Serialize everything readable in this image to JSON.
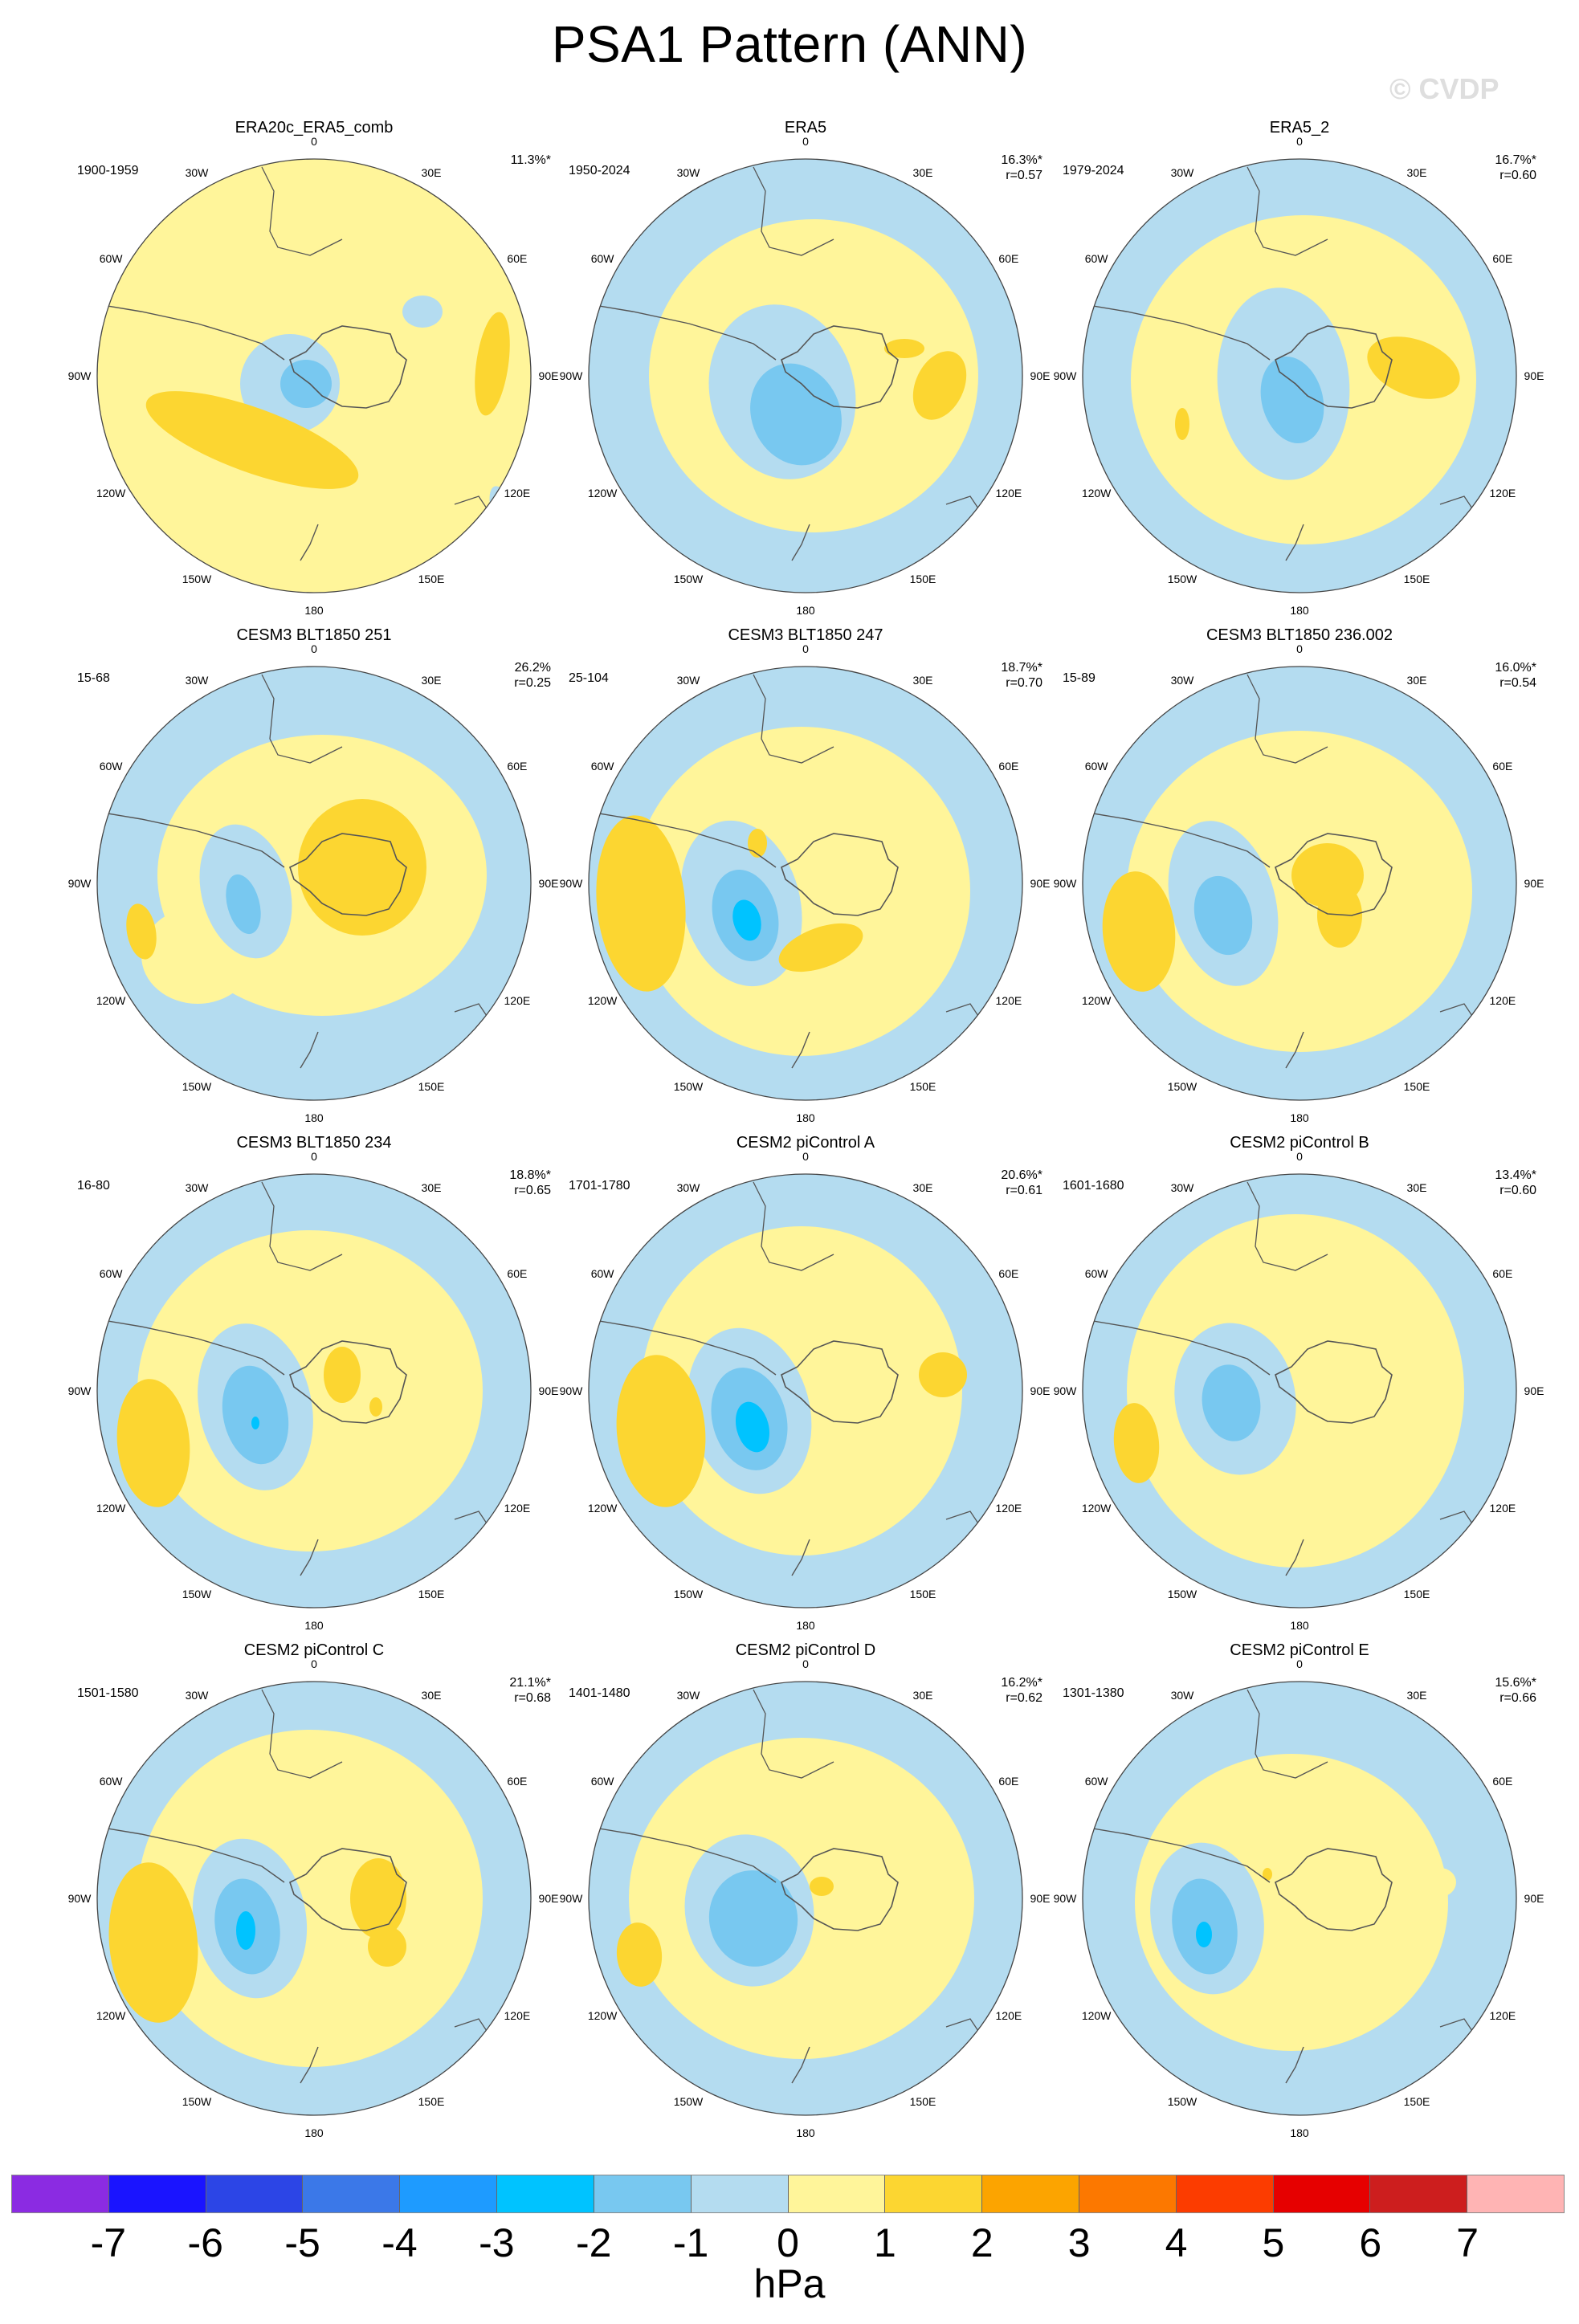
{
  "title": "PSA1 Pattern (ANN)",
  "copyright": "© CVDP",
  "lon_labels": [
    "0",
    "30E",
    "60E",
    "90E",
    "120E",
    "150E",
    "180",
    "150W",
    "120W",
    "90W",
    "60W",
    "30W"
  ],
  "units": "hPa",
  "colorbar": {
    "labels": [
      "-7",
      "-6",
      "-5",
      "-4",
      "-3",
      "-2",
      "-1",
      "0",
      "1",
      "2",
      "3",
      "4",
      "5",
      "6",
      "7"
    ],
    "colors": [
      "#8b2be2",
      "#1a14ff",
      "#2c45e6",
      "#3b78e8",
      "#1e9bff",
      "#00c3ff",
      "#78c8f0",
      "#b4dcf0",
      "#fff59a",
      "#fcd631",
      "#fca400",
      "#fc7800",
      "#fc3c00",
      "#e60000",
      "#cd1e1e",
      "#ffb4b4"
    ]
  },
  "colors": {
    "level_1": "#fcd631",
    "level_0": "#fff59a",
    "level_m1": "#b4dcf0",
    "level_m2": "#78c8f0",
    "level_m3": "#00c3ff",
    "level_m4": "#1e9bff",
    "coast": "#555555"
  },
  "panels": [
    {
      "title": "ERA20c_ERA5_comb",
      "years": "1900-1959",
      "pct": "11.3%*",
      "r": "",
      "base": "level_0"
    },
    {
      "title": "ERA5",
      "years": "1950-2024",
      "pct": "16.3%*",
      "r": "r=0.57",
      "base": "level_m1"
    },
    {
      "title": "ERA5_2",
      "years": "1979-2024",
      "pct": "16.7%*",
      "r": "r=0.60",
      "base": "level_m1"
    },
    {
      "title": "CESM3 BLT1850 251",
      "years": "15-68",
      "pct": "26.2%",
      "r": "r=0.25",
      "base": "level_m1"
    },
    {
      "title": "CESM3 BLT1850 247",
      "years": "25-104",
      "pct": "18.7%*",
      "r": "r=0.70",
      "base": "level_m1"
    },
    {
      "title": "CESM3 BLT1850 236.002",
      "years": "15-89",
      "pct": "16.0%*",
      "r": "r=0.54",
      "base": "level_m1"
    },
    {
      "title": "CESM3 BLT1850 234",
      "years": "16-80",
      "pct": "18.8%*",
      "r": "r=0.65",
      "base": "level_m1"
    },
    {
      "title": "CESM2 piControl A",
      "years": "1701-1780",
      "pct": "20.6%*",
      "r": "r=0.61",
      "base": "level_m1"
    },
    {
      "title": "CESM2 piControl B",
      "years": "1601-1680",
      "pct": "13.4%*",
      "r": "r=0.60",
      "base": "level_m1"
    },
    {
      "title": "CESM2 piControl C",
      "years": "1501-1580",
      "pct": "21.1%*",
      "r": "r=0.68",
      "base": "level_m1"
    },
    {
      "title": "CESM2 piControl D",
      "years": "1401-1480",
      "pct": "16.2%*",
      "r": "r=0.62",
      "base": "level_m1"
    },
    {
      "title": "CESM2 piControl E",
      "years": "1301-1380",
      "pct": "15.6%*",
      "r": "r=0.66",
      "base": "level_m1"
    }
  ]
}
